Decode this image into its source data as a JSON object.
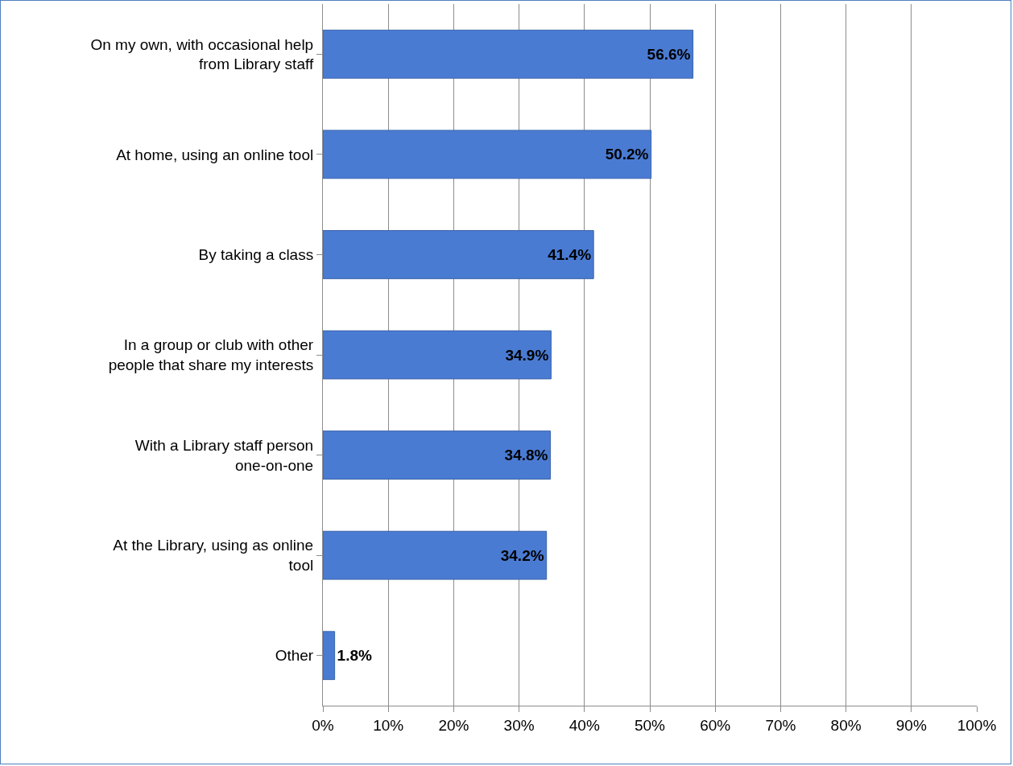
{
  "chart_data": {
    "type": "bar",
    "orientation": "horizontal",
    "categories": [
      "On my own, with occasional help from Library staff",
      "At home, using an online tool",
      "By taking a class",
      "In a group or club with other people that share my interests",
      "With a Library staff person one-on-one",
      "At the Library, using as online tool",
      "Other"
    ],
    "values": [
      56.6,
      50.2,
      41.4,
      34.9,
      34.8,
      34.2,
      1.8
    ],
    "value_labels": [
      "56.6%",
      "50.2%",
      "41.4%",
      "34.9%",
      "34.8%",
      "34.2%",
      "1.8%"
    ],
    "color": "#4a7bd3",
    "xlim": [
      0,
      100
    ],
    "xticks": [
      {
        "value": 0,
        "label": "0%"
      },
      {
        "value": 10,
        "label": "10%"
      },
      {
        "value": 20,
        "label": "20%"
      },
      {
        "value": 30,
        "label": "30%"
      },
      {
        "value": 40,
        "label": "40%"
      },
      {
        "value": 50,
        "label": "50%"
      },
      {
        "value": 60,
        "label": "60%"
      },
      {
        "value": 70,
        "label": "70%"
      },
      {
        "value": 80,
        "label": "80%"
      },
      {
        "value": 90,
        "label": "90%"
      },
      {
        "value": 100,
        "label": "100%"
      }
    ],
    "grid": "x"
  }
}
